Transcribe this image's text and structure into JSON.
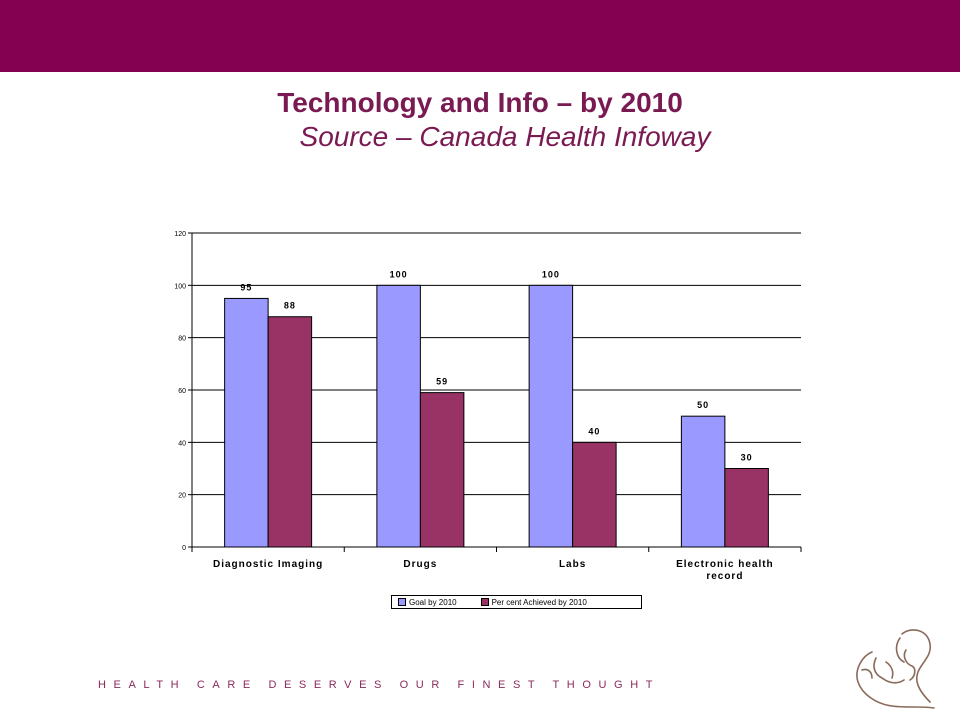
{
  "header": {
    "title": "Technology and Info – by 2010",
    "subtitle": "Source – Canada Health Infoway"
  },
  "colors": {
    "band": "#840050",
    "series_goal": "#9999ff",
    "series_achieved": "#993366"
  },
  "chart_data": {
    "type": "bar",
    "categories": [
      "Diagnostic Imaging",
      "Drugs",
      "Labs",
      "Electronic health record"
    ],
    "category_lines": [
      [
        "Diagnostic Imaging"
      ],
      [
        "Drugs"
      ],
      [
        "Labs"
      ],
      [
        "Electronic health",
        "record"
      ]
    ],
    "series": [
      {
        "name": "Goal by 2010",
        "values": [
          95,
          100,
          100,
          50
        ],
        "color": "#9999ff"
      },
      {
        "name": "Per cent Achieved by 2010",
        "values": [
          88,
          59,
          40,
          30
        ],
        "color": "#993366"
      }
    ],
    "ylim": [
      0,
      120
    ],
    "yticks": [
      0,
      20,
      40,
      60,
      80,
      100,
      120
    ],
    "grid": true,
    "legend": "bottom"
  },
  "footer": {
    "tagline": "HEALTH CARE DESERVES OUR FINEST THOUGHT"
  },
  "logo": {
    "icon": "mother-child-logo-icon"
  }
}
